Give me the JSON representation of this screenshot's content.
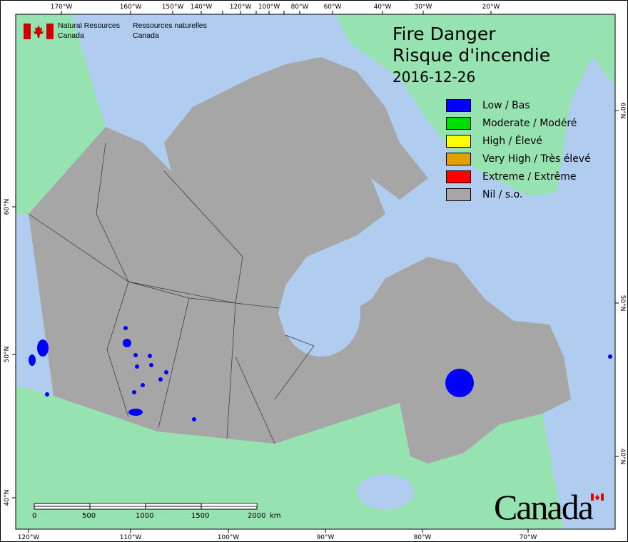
{
  "map": {
    "title_en": "Fire Danger",
    "title_fr": "Risque d'incendie",
    "date": "2016-12-26",
    "colors": {
      "water": "#b0cdef",
      "foreign_land": "#96e2b0",
      "nil": "#a6a6a6",
      "low": "#0000ff"
    }
  },
  "agency": {
    "name_en_1": "Natural Resources",
    "name_en_2": "Canada",
    "name_fr_1": "Ressources naturelles",
    "name_fr_2": "Canada",
    "flag_icon": "canada-flag-icon",
    "wordmark": "Canada"
  },
  "legend": [
    {
      "label": "Low / Bas",
      "color": "#0000ff"
    },
    {
      "label": "Moderate / Modéré",
      "color": "#00dd00"
    },
    {
      "label": "High / Élevé",
      "color": "#ffff00"
    },
    {
      "label": "Very High / Très élevé",
      "color": "#e0a000"
    },
    {
      "label": "Extreme / Extrême",
      "color": "#ff0000"
    },
    {
      "label": "Nil / s.o.",
      "color": "#a6a6a6"
    }
  ],
  "axes": {
    "top": [
      "170°W",
      "160°W",
      "150°W",
      "140°W",
      "120°W",
      "100°W",
      "80°W",
      "60°W",
      "40°W",
      "30°W",
      "20°W"
    ],
    "bottom": [
      "120°W",
      "110°W",
      "100°W",
      "90°W",
      "80°W",
      "70°W"
    ],
    "left": [
      "60°N",
      "50°N",
      "40°N"
    ],
    "right": [
      "60°N",
      "50°N",
      "40°N"
    ]
  },
  "scale_bar": {
    "labels": [
      "0",
      "500",
      "1000",
      "1500",
      "2000"
    ],
    "unit": "km"
  }
}
